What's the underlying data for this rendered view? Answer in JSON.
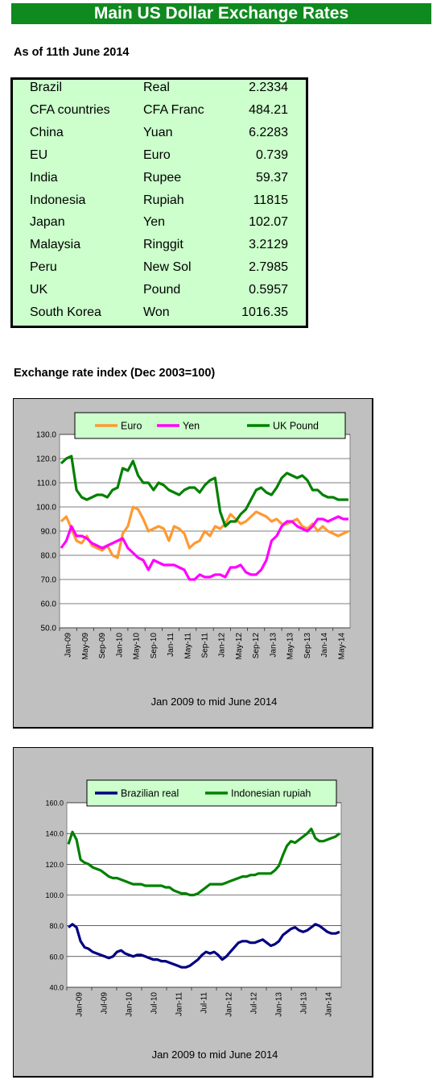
{
  "header": {
    "title": "Main US Dollar Exchange Rates",
    "as_of": "As of 11th June 2014"
  },
  "rates_table": [
    {
      "country": "Brazil",
      "currency": "Real",
      "rate": "2.2334"
    },
    {
      "country": "CFA countries",
      "currency": "CFA Franc",
      "rate": "484.21"
    },
    {
      "country": "China",
      "currency": "Yuan",
      "rate": "6.2283"
    },
    {
      "country": "EU",
      "currency": "Euro",
      "rate": "0.739"
    },
    {
      "country": "India",
      "currency": "Rupee",
      "rate": "59.37"
    },
    {
      "country": "Indonesia",
      "currency": "Rupiah",
      "rate": "11815"
    },
    {
      "country": "Japan",
      "currency": "Yen",
      "rate": "102.07"
    },
    {
      "country": "Malaysia",
      "currency": "Ringgit",
      "rate": "3.2129"
    },
    {
      "country": "Peru",
      "currency": "New Sol",
      "rate": "2.7985"
    },
    {
      "country": "UK",
      "currency": "Pound",
      "rate": "0.5957"
    },
    {
      "country": "South Korea",
      "currency": "Won",
      "rate": "1016.35"
    }
  ],
  "section_title": "Exchange rate index (Dec 2003=100)",
  "colors": {
    "banner": "#0f8a1f",
    "table_bg": "#ccffcc",
    "euro": "#ff9933",
    "yen": "#ff00ff",
    "pound": "#008000",
    "real": "#000080",
    "rupiah": "#008000"
  },
  "chart_data": [
    {
      "type": "line",
      "xlabel": "Jan 2009 to mid June 2014",
      "ylim": [
        50,
        130
      ],
      "yticks": [
        "130.0",
        "120.0",
        "110.0",
        "100.0",
        "90.0",
        "80.0",
        "70.0",
        "60.0",
        "50.0"
      ],
      "xticks": [
        "Jan-09",
        "May-09",
        "Sep-09",
        "Jan-10",
        "May-10",
        "Sep-10",
        "Jan-11",
        "May-11",
        "Sep-11",
        "Jan-12",
        "May-12",
        "Sep-12",
        "Jan-13",
        "May-13",
        "Sep-13",
        "Jan-14",
        "May-14"
      ],
      "legend_position": "top",
      "grid": true,
      "series": [
        {
          "name": "Euro",
          "color": "#ff9933",
          "values": [
            94,
            96,
            91,
            86,
            85,
            88,
            84,
            83,
            82,
            84,
            80,
            79,
            89,
            92,
            100,
            99,
            95,
            90,
            91,
            92,
            91,
            86,
            92,
            91,
            89,
            83,
            85,
            86,
            90,
            88,
            92,
            91,
            93,
            97,
            95,
            93,
            94,
            96,
            98,
            97,
            96,
            94,
            95,
            93,
            93,
            94,
            95,
            92,
            91,
            93,
            90,
            92,
            90,
            89,
            88,
            89,
            90
          ]
        },
        {
          "name": "Yen",
          "color": "#ff00ff",
          "values": [
            83,
            86,
            92,
            88,
            88,
            87,
            85,
            84,
            83,
            84,
            85,
            86,
            87,
            83,
            81,
            79,
            78,
            74,
            78,
            77,
            76,
            76,
            76,
            75,
            74,
            70,
            70,
            72,
            71,
            71,
            72,
            72,
            71,
            75,
            75,
            76,
            73,
            72,
            72,
            74,
            78,
            86,
            88,
            92,
            94,
            94,
            92,
            91,
            90,
            92,
            95,
            95,
            94,
            95,
            96,
            95,
            95
          ]
        },
        {
          "name": "UK Pound",
          "color": "#008000",
          "values": [
            118,
            120,
            121,
            107,
            104,
            103,
            104,
            105,
            105,
            104,
            107,
            108,
            116,
            115,
            119,
            113,
            110,
            110,
            107,
            110,
            109,
            107,
            106,
            105,
            107,
            108,
            108,
            106,
            109,
            111,
            112,
            98,
            92,
            94,
            94,
            97,
            99,
            103,
            107,
            108,
            106,
            105,
            108,
            112,
            114,
            113,
            112,
            113,
            111,
            107,
            107,
            105,
            104,
            104,
            103,
            103,
            103
          ]
        }
      ]
    },
    {
      "type": "line",
      "xlabel": "Jan 2009 to mid June 2014",
      "ylim": [
        40,
        160
      ],
      "yticks": [
        "160.0",
        "140.0",
        "120.0",
        "100.0",
        "80.0",
        "60.0",
        "40.0"
      ],
      "xticks": [
        "Jan-09",
        "Jul-09",
        "Jan-10",
        "Jul-10",
        "Jan-11",
        "Jul-11",
        "Jan-12",
        "Jul-12",
        "Jan-13",
        "Jul-13",
        "Jan-14"
      ],
      "legend_position": "top",
      "grid": true,
      "series": [
        {
          "name": "Brazilian real",
          "color": "#000080",
          "values": [
            79,
            81,
            79,
            70,
            66,
            65,
            63,
            62,
            61,
            60,
            59,
            60,
            63,
            64,
            62,
            61,
            60,
            61,
            61,
            60,
            59,
            58,
            58,
            57,
            57,
            56,
            55,
            54,
            53,
            53,
            54,
            56,
            58,
            61,
            63,
            62,
            63,
            61,
            58,
            60,
            63,
            66,
            69,
            70,
            70,
            69,
            69,
            70,
            71,
            69,
            67,
            68,
            70,
            74,
            76,
            78,
            79,
            77,
            76,
            77,
            79,
            81,
            80,
            78,
            76,
            75,
            75,
            76
          ]
        },
        {
          "name": "Indonesian rupiah",
          "color": "#008000",
          "values": [
            133,
            141,
            136,
            123,
            121,
            120,
            118,
            117,
            116,
            114,
            112,
            111,
            111,
            110,
            109,
            108,
            107,
            107,
            107,
            106,
            106,
            106,
            106,
            106,
            105,
            105,
            103,
            102,
            101,
            101,
            100,
            100,
            101,
            103,
            105,
            107,
            107,
            107,
            107,
            108,
            109,
            110,
            111,
            112,
            112,
            113,
            113,
            114,
            114,
            114,
            114,
            116,
            119,
            126,
            132,
            135,
            134,
            136,
            138,
            140,
            143,
            137,
            135,
            135,
            136,
            137,
            138,
            140
          ]
        }
      ]
    }
  ]
}
